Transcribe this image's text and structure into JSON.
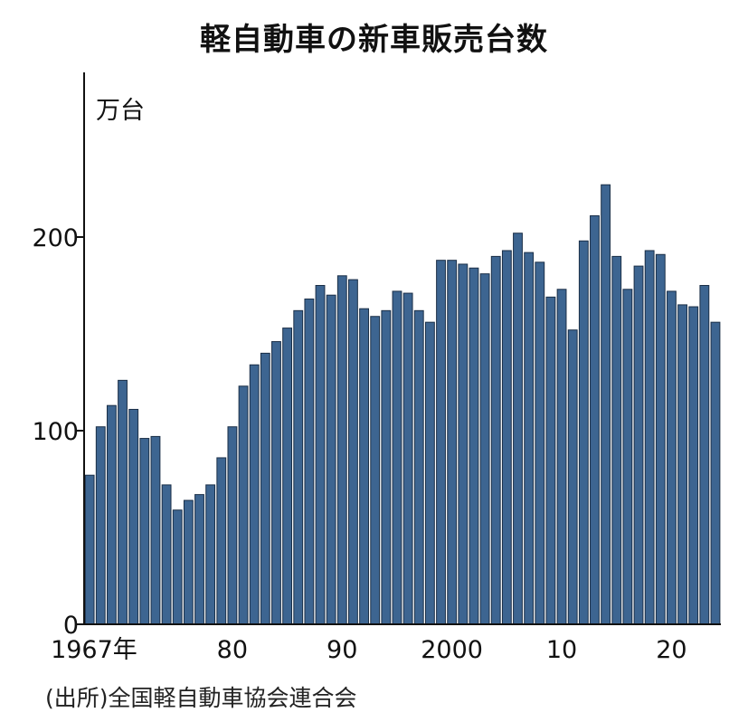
{
  "chart_data": {
    "type": "bar",
    "title": "軽自動車の新車販売台数",
    "ylabel": "万台",
    "xlabel": "",
    "ylim": [
      0,
      280
    ],
    "yticks": [
      0,
      100,
      200
    ],
    "xtick_labels": [
      {
        "year": 1967,
        "label": "1967年"
      },
      {
        "year": 1980,
        "label": "80"
      },
      {
        "year": 1990,
        "label": "90"
      },
      {
        "year": 2000,
        "label": "2000"
      },
      {
        "year": 2010,
        "label": "10"
      },
      {
        "year": 2020,
        "label": "20"
      }
    ],
    "bar_color": "#3d6591",
    "grid": false,
    "legend": "none",
    "categories": [
      1967,
      1968,
      1969,
      1970,
      1971,
      1972,
      1973,
      1974,
      1975,
      1976,
      1977,
      1978,
      1979,
      1980,
      1981,
      1982,
      1983,
      1984,
      1985,
      1986,
      1987,
      1988,
      1989,
      1990,
      1991,
      1992,
      1993,
      1994,
      1995,
      1996,
      1997,
      1998,
      1999,
      2000,
      2001,
      2002,
      2003,
      2004,
      2005,
      2006,
      2007,
      2008,
      2009,
      2010,
      2011,
      2012,
      2013,
      2014,
      2015,
      2016,
      2017,
      2018,
      2019,
      2020,
      2021,
      2022,
      2023,
      2024
    ],
    "values": [
      77,
      102,
      113,
      126,
      111,
      96,
      97,
      72,
      59,
      64,
      67,
      72,
      86,
      102,
      123,
      134,
      140,
      146,
      153,
      162,
      168,
      175,
      170,
      180,
      178,
      163,
      159,
      162,
      172,
      171,
      162,
      156,
      188,
      188,
      186,
      184,
      181,
      190,
      193,
      202,
      192,
      187,
      169,
      173,
      152,
      198,
      211,
      227,
      190,
      173,
      185,
      193,
      191,
      172,
      165,
      164,
      175,
      156
    ]
  },
  "source_note": "(出所)全国軽自動車協会連合会"
}
